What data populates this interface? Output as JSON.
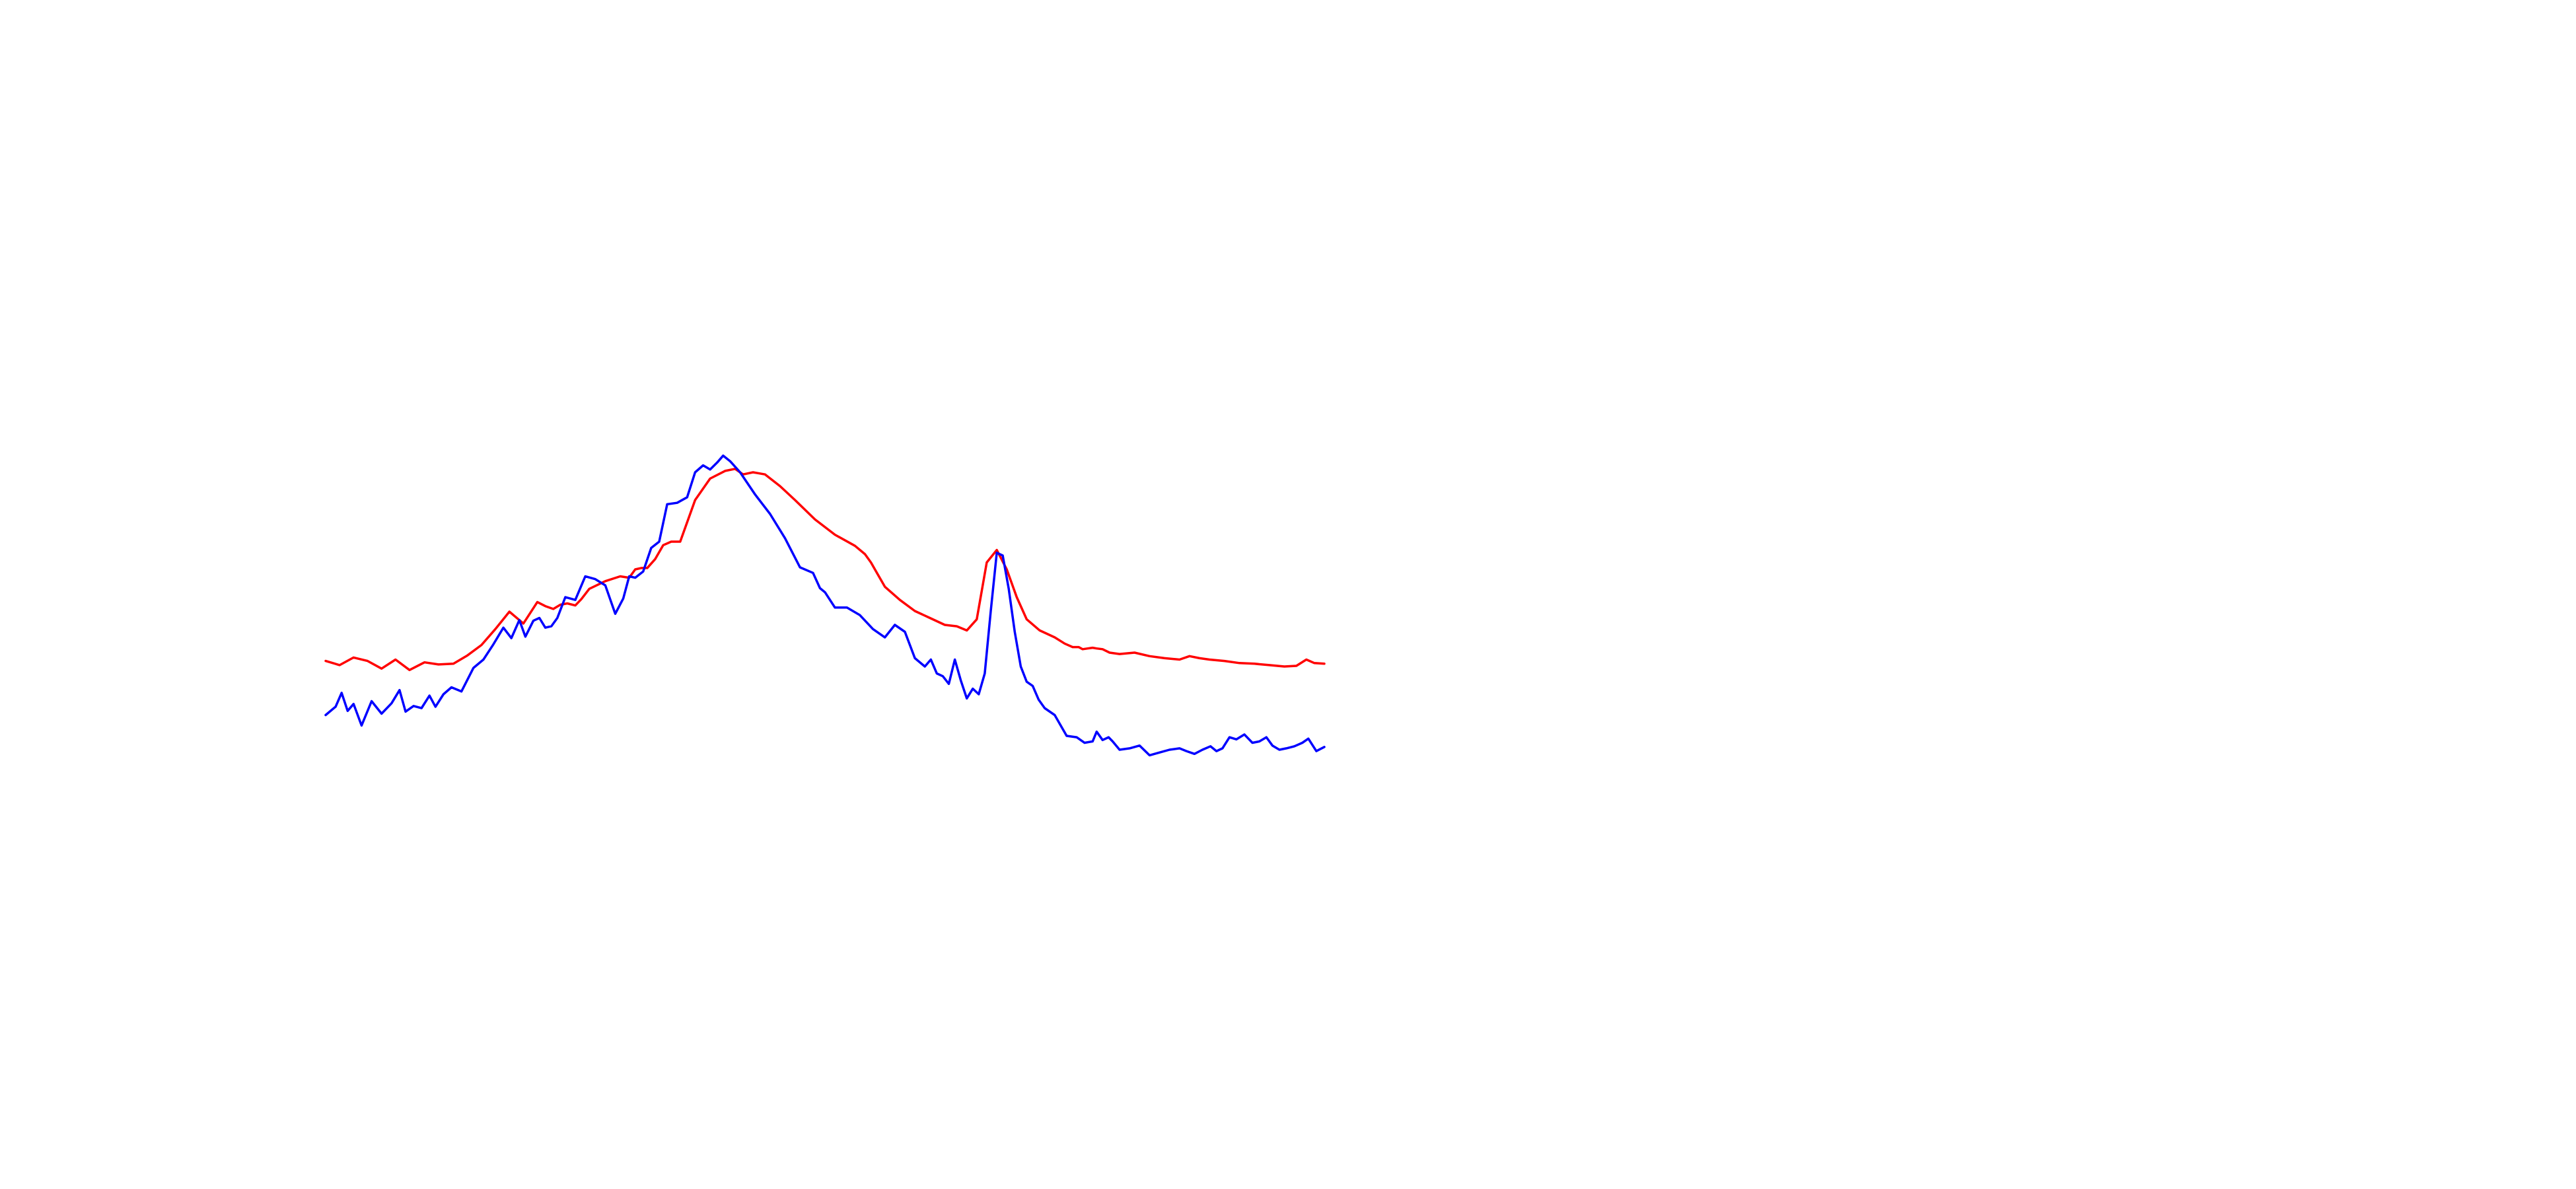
{
  "chart_data": {
    "type": "line",
    "title": "",
    "xlabel": "",
    "ylabel": "",
    "axes_visible": false,
    "grid": false,
    "legend": "none",
    "xlim": [
      0,
      1
    ],
    "ylim": [
      0,
      1
    ],
    "series": [
      {
        "color": "#ff0000",
        "x": [
          0.0,
          0.014,
          0.028,
          0.042,
          0.056,
          0.07,
          0.084,
          0.099,
          0.113,
          0.128,
          0.142,
          0.156,
          0.17,
          0.184,
          0.198,
          0.212,
          0.22,
          0.228,
          0.235,
          0.242,
          0.25,
          0.256,
          0.264,
          0.28,
          0.295,
          0.304,
          0.31,
          0.316,
          0.322,
          0.33,
          0.338,
          0.346,
          0.355,
          0.37,
          0.385,
          0.4,
          0.41,
          0.418,
          0.428,
          0.44,
          0.455,
          0.47,
          0.49,
          0.51,
          0.53,
          0.54,
          0.546,
          0.552,
          0.56,
          0.575,
          0.59,
          0.605,
          0.62,
          0.632,
          0.642,
          0.652,
          0.662,
          0.672,
          0.682,
          0.692,
          0.702,
          0.715,
          0.73,
          0.74,
          0.748,
          0.754,
          0.758,
          0.763,
          0.768,
          0.772,
          0.778,
          0.785,
          0.795,
          0.81,
          0.825,
          0.84,
          0.855,
          0.865,
          0.875,
          0.885,
          0.9,
          0.915,
          0.93,
          0.945,
          0.96,
          0.972,
          0.982,
          0.99,
          1.0
        ],
        "y": [
          0.428,
          0.422,
          0.433,
          0.428,
          0.417,
          0.43,
          0.415,
          0.426,
          0.423,
          0.424,
          0.436,
          0.451,
          0.474,
          0.499,
          0.482,
          0.513,
          0.507,
          0.503,
          0.509,
          0.511,
          0.508,
          0.517,
          0.532,
          0.543,
          0.55,
          0.548,
          0.56,
          0.562,
          0.562,
          0.575,
          0.595,
          0.6,
          0.6,
          0.66,
          0.691,
          0.702,
          0.705,
          0.697,
          0.7,
          0.697,
          0.68,
          0.66,
          0.632,
          0.61,
          0.594,
          0.582,
          0.57,
          0.555,
          0.535,
          0.516,
          0.5,
          0.49,
          0.48,
          0.478,
          0.472,
          0.488,
          0.57,
          0.588,
          0.56,
          0.52,
          0.488,
          0.472,
          0.462,
          0.453,
          0.448,
          0.448,
          0.445,
          0.446,
          0.447,
          0.446,
          0.445,
          0.44,
          0.438,
          0.44,
          0.435,
          0.432,
          0.43,
          0.435,
          0.432,
          0.43,
          0.428,
          0.425,
          0.424,
          0.422,
          0.42,
          0.421,
          0.43,
          0.425,
          0.424
        ]
      },
      {
        "color": "#0000ff",
        "x": [
          0.0,
          0.01,
          0.016,
          0.022,
          0.028,
          0.036,
          0.046,
          0.056,
          0.066,
          0.074,
          0.08,
          0.088,
          0.096,
          0.104,
          0.11,
          0.118,
          0.126,
          0.136,
          0.148,
          0.158,
          0.168,
          0.178,
          0.186,
          0.194,
          0.2,
          0.208,
          0.214,
          0.22,
          0.226,
          0.232,
          0.24,
          0.25,
          0.26,
          0.27,
          0.28,
          0.29,
          0.298,
          0.304,
          0.31,
          0.318,
          0.326,
          0.334,
          0.342,
          0.352,
          0.362,
          0.37,
          0.378,
          0.385,
          0.392,
          0.398,
          0.405,
          0.415,
          0.43,
          0.445,
          0.46,
          0.475,
          0.488,
          0.495,
          0.5,
          0.51,
          0.522,
          0.535,
          0.548,
          0.56,
          0.57,
          0.58,
          0.59,
          0.6,
          0.606,
          0.612,
          0.618,
          0.624,
          0.63,
          0.636,
          0.642,
          0.648,
          0.654,
          0.66,
          0.666,
          0.672,
          0.678,
          0.684,
          0.69,
          0.696,
          0.702,
          0.708,
          0.714,
          0.72,
          0.73,
          0.742,
          0.752,
          0.76,
          0.768,
          0.772,
          0.778,
          0.784,
          0.788,
          0.795,
          0.805,
          0.815,
          0.825,
          0.835,
          0.845,
          0.855,
          0.862,
          0.87,
          0.878,
          0.886,
          0.892,
          0.898,
          0.905,
          0.912,
          0.92,
          0.928,
          0.935,
          0.942,
          0.948,
          0.955,
          0.962,
          0.97,
          0.978,
          0.984,
          0.992,
          1.0
        ],
        "y": [
          0.35,
          0.362,
          0.382,
          0.356,
          0.366,
          0.335,
          0.37,
          0.352,
          0.367,
          0.386,
          0.355,
          0.363,
          0.36,
          0.378,
          0.362,
          0.38,
          0.39,
          0.384,
          0.418,
          0.43,
          0.452,
          0.476,
          0.461,
          0.487,
          0.463,
          0.486,
          0.49,
          0.476,
          0.478,
          0.49,
          0.52,
          0.516,
          0.55,
          0.546,
          0.537,
          0.496,
          0.518,
          0.55,
          0.548,
          0.557,
          0.591,
          0.6,
          0.654,
          0.656,
          0.664,
          0.7,
          0.71,
          0.704,
          0.714,
          0.724,
          0.716,
          0.7,
          0.668,
          0.64,
          0.605,
          0.563,
          0.555,
          0.533,
          0.527,
          0.505,
          0.505,
          0.494,
          0.474,
          0.462,
          0.48,
          0.47,
          0.432,
          0.42,
          0.43,
          0.41,
          0.406,
          0.395,
          0.43,
          0.4,
          0.374,
          0.388,
          0.38,
          0.41,
          0.5,
          0.584,
          0.58,
          0.532,
          0.47,
          0.42,
          0.398,
          0.392,
          0.372,
          0.36,
          0.35,
          0.32,
          0.318,
          0.31,
          0.312,
          0.326,
          0.314,
          0.318,
          0.312,
          0.3,
          0.302,
          0.306,
          0.292,
          0.296,
          0.3,
          0.302,
          0.298,
          0.294,
          0.3,
          0.305,
          0.298,
          0.302,
          0.318,
          0.315,
          0.322,
          0.31,
          0.312,
          0.318,
          0.306,
          0.3,
          0.302,
          0.305,
          0.31,
          0.316,
          0.298,
          0.304
        ]
      }
    ]
  }
}
